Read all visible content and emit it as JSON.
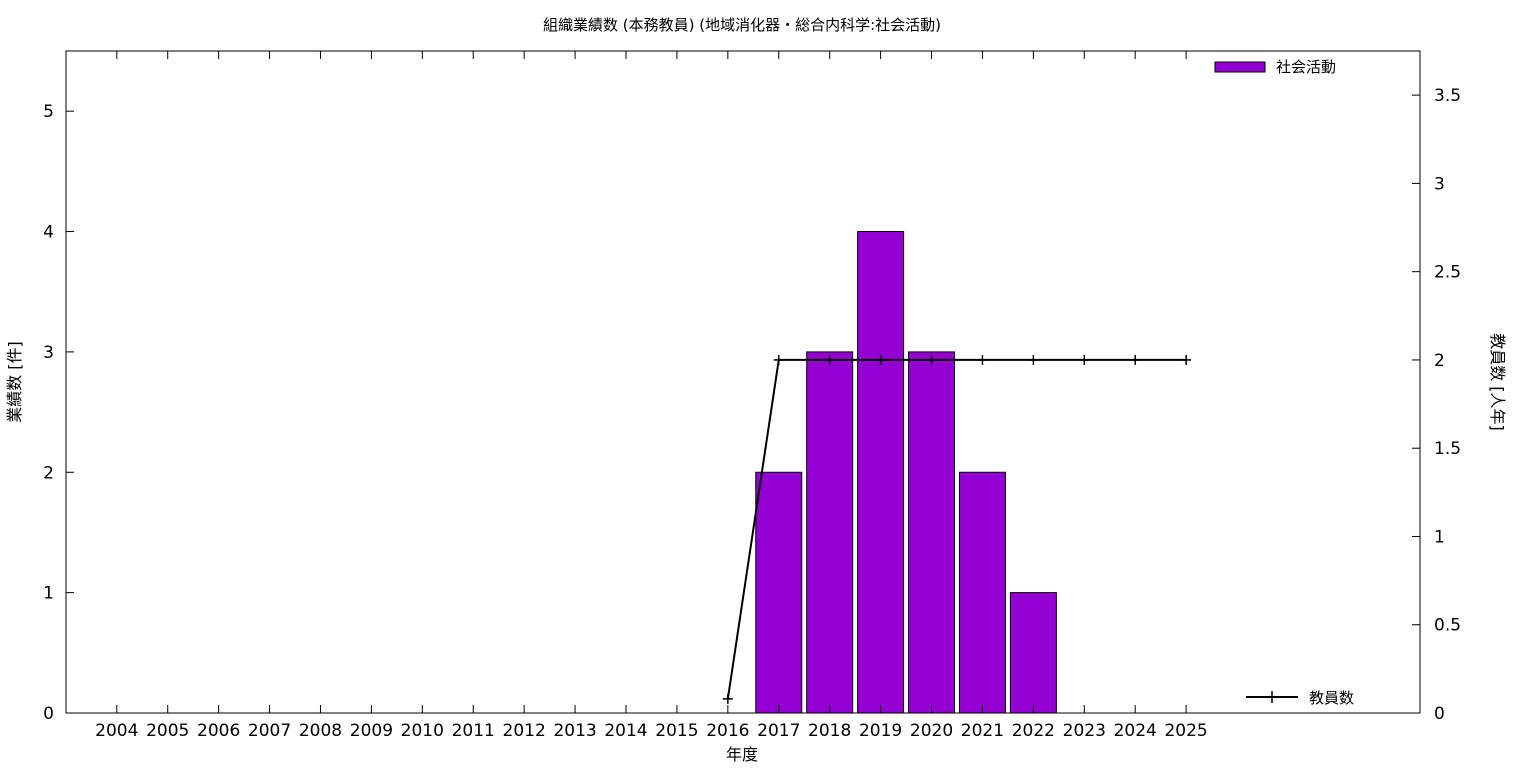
{
  "chart_data": {
    "type": "bar",
    "title": "組織業績数 (本務教員) (地域消化器・総合内科学:社会活動)",
    "xlabel": "年度",
    "ylabel": "業績数 [件]",
    "y2label": "教員数 [人年]",
    "categories": [
      "2004",
      "2005",
      "2006",
      "2007",
      "2008",
      "2009",
      "2010",
      "2011",
      "2012",
      "2013",
      "2014",
      "2015",
      "2016",
      "2017",
      "2018",
      "2019",
      "2020",
      "2021",
      "2022",
      "2023",
      "2024",
      "2025"
    ],
    "ylim": [
      0,
      5.5
    ],
    "yticks": [
      "0",
      "1",
      "2",
      "3",
      "4",
      "5"
    ],
    "y2lim": [
      0,
      3.75
    ],
    "y2ticks": [
      "0",
      "0.5",
      "1",
      "1.5",
      "2",
      "2.5",
      "3",
      "3.5"
    ],
    "bar_series": {
      "name": "社会活動",
      "color": "#9400d3",
      "values": [
        0,
        0,
        0,
        0,
        0,
        0,
        0,
        0,
        0,
        0,
        0,
        0,
        0,
        2,
        3,
        4,
        3,
        2,
        1,
        0,
        0,
        0
      ]
    },
    "line_series": {
      "name": "教員数",
      "color": "#000000",
      "axis": "right",
      "points": [
        {
          "x": "2016",
          "y": 0.08
        },
        {
          "x": "2017",
          "y": 2
        },
        {
          "x": "2018",
          "y": 2
        },
        {
          "x": "2019",
          "y": 2
        },
        {
          "x": "2020",
          "y": 2
        },
        {
          "x": "2021",
          "y": 2
        },
        {
          "x": "2022",
          "y": 2
        },
        {
          "x": "2023",
          "y": 2
        },
        {
          "x": "2024",
          "y": 2
        },
        {
          "x": "2025",
          "y": 2
        }
      ]
    },
    "legend": [
      "top-right",
      "bottom-right"
    ],
    "grid": false
  }
}
